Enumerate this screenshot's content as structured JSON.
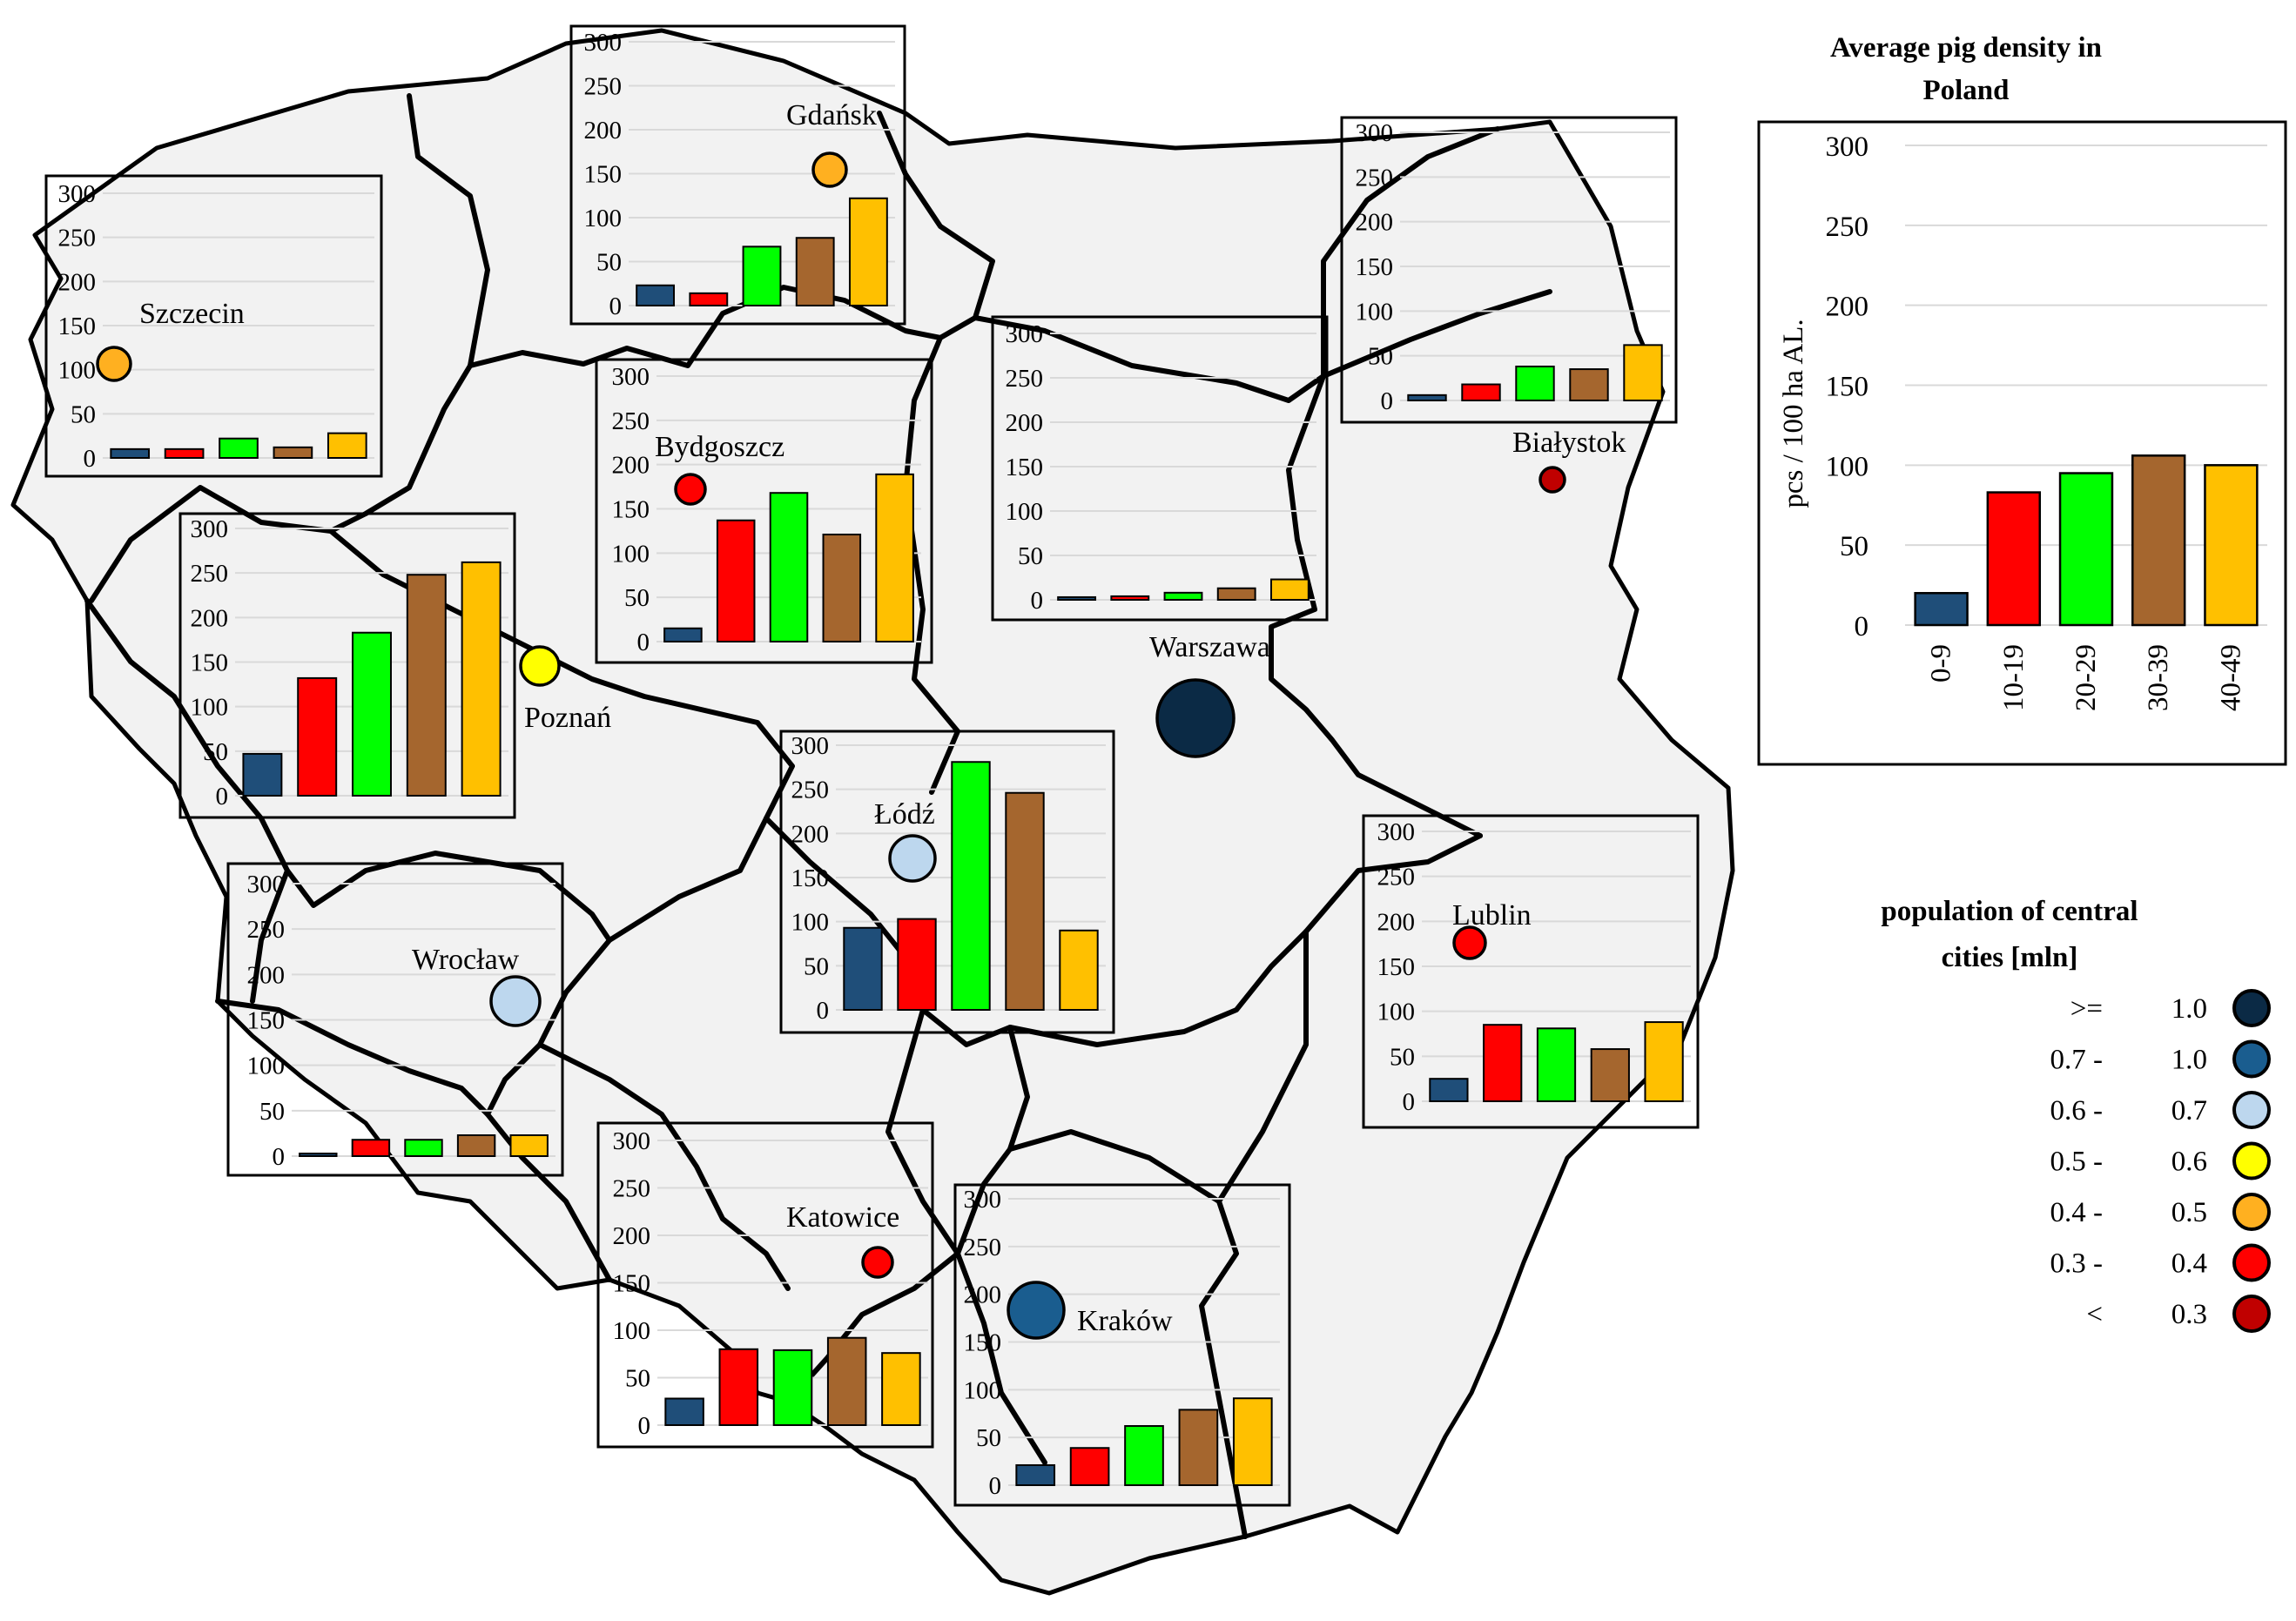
{
  "categories": [
    "0-9",
    "10-19",
    "20-29",
    "30-39",
    "40-49"
  ],
  "category_colors": [
    "#1f4e79",
    "#ff0000",
    "#00ff00",
    "#a5662e",
    "#ffc000"
  ],
  "regions": [
    {
      "city": "Gdańsk",
      "values": [
        23,
        14,
        67,
        77,
        122
      ]
    },
    {
      "city": "Szczecin",
      "values": [
        10,
        10,
        22,
        12,
        28
      ]
    },
    {
      "city": "Białystok",
      "values": [
        6,
        18,
        38,
        35,
        62
      ]
    },
    {
      "city": "Bydgoszcz",
      "values": [
        15,
        137,
        168,
        121,
        189
      ]
    },
    {
      "city": "Warszawa",
      "values": [
        3,
        4,
        8,
        13,
        23
      ]
    },
    {
      "city": "Poznań",
      "values": [
        47,
        132,
        183,
        248,
        262
      ]
    },
    {
      "city": "Łódź",
      "values": [
        93,
        103,
        281,
        246,
        90
      ]
    },
    {
      "city": "Wrocław",
      "values": [
        2,
        18,
        18,
        23,
        23
      ]
    },
    {
      "city": "Lublin",
      "values": [
        25,
        85,
        81,
        58,
        88
      ]
    },
    {
      "city": "Katowice",
      "values": [
        28,
        80,
        79,
        92,
        76
      ]
    },
    {
      "city": "Kraków",
      "values": [
        21,
        39,
        62,
        79,
        91
      ]
    }
  ],
  "city_labels": [
    "Gdańsk",
    "Szczecin",
    "Białystok",
    "Bydgoszcz",
    "Warszawa",
    "Poznań",
    "Łódź",
    "Wrocław",
    "Lublin",
    "Katowice",
    "Kraków"
  ],
  "city_sizes": [
    {
      "city": "Gdańsk",
      "class": "0.4 - 0.5"
    },
    {
      "city": "Szczecin",
      "class": "0.4 - 0.5"
    },
    {
      "city": "Białystok",
      "class": "< 0.3"
    },
    {
      "city": "Bydgoszcz",
      "class": "0.3 - 0.4"
    },
    {
      "city": "Warszawa",
      "class": ">= 1.0"
    },
    {
      "city": "Poznań",
      "class": "0.5 - 0.6"
    },
    {
      "city": "Łódź",
      "class": "0.6 - 0.7"
    },
    {
      "city": "Wrocław",
      "class": "0.6 - 0.7"
    },
    {
      "city": "Lublin",
      "class": "0.3 - 0.4"
    },
    {
      "city": "Katowice",
      "class": "0.3 - 0.4"
    },
    {
      "city": "Kraków",
      "class": "0.7 - 1.0"
    }
  ],
  "axis_ticks": [
    "0",
    "50",
    "100",
    "150",
    "200",
    "250",
    "300"
  ],
  "axis_max": 300,
  "chart_data": {
    "type": "bar",
    "title": "Average pig density in Poland",
    "title_lines": [
      "Average pig density in",
      "Poland"
    ],
    "categories": [
      "0-9",
      "10-19",
      "20-29",
      "30-39",
      "40-49"
    ],
    "values": [
      20,
      83,
      95,
      106,
      100
    ],
    "ylabel": "pcs / 100 ha AL.",
    "xlabel": "",
    "ylim": [
      0,
      300
    ],
    "yticks": [
      "0",
      "50",
      "100",
      "150",
      "200",
      "250",
      "300"
    ]
  },
  "legend": {
    "title_lines": [
      "population of central",
      "cities [mln]"
    ],
    "items": [
      {
        "label": ">=",
        "value": "1.0",
        "color": "#0b2a45"
      },
      {
        "label": "0.7  -",
        "value": "1.0",
        "color": "#1a5d8f"
      },
      {
        "label": "0.6  -",
        "value": "0.7",
        "color": "#bdd7ee"
      },
      {
        "label": "0.5  -",
        "value": "0.6",
        "color": "#ffff00"
      },
      {
        "label": "0.4  -",
        "value": "0.5",
        "color": "#ffb020"
      },
      {
        "label": "0.3  -",
        "value": "0.4",
        "color": "#ff0000"
      },
      {
        "label": "<",
        "value": "0.3",
        "color": "#c00000"
      }
    ]
  }
}
